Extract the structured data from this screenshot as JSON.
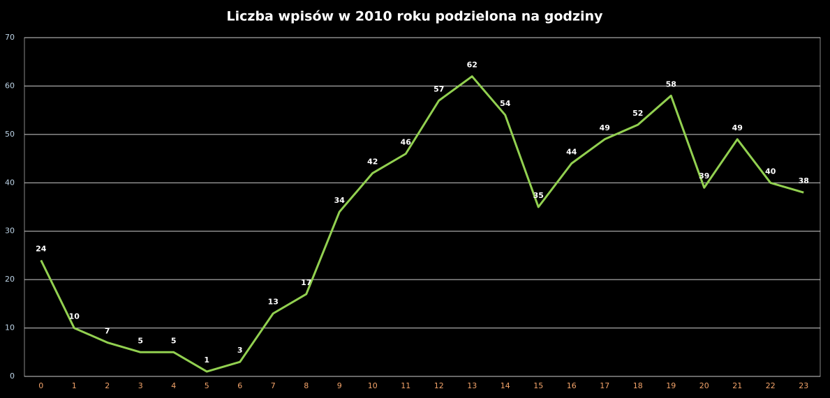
{
  "chart_data": {
    "type": "line",
    "title": "Liczba wpisów w 2010 roku podzielona na godziny",
    "categories": [
      "0",
      "1",
      "2",
      "3",
      "4",
      "5",
      "6",
      "7",
      "8",
      "9",
      "10",
      "11",
      "12",
      "13",
      "14",
      "15",
      "16",
      "17",
      "18",
      "19",
      "20",
      "21",
      "22",
      "23"
    ],
    "series": [
      {
        "name": null,
        "color": "#92d050",
        "values": [
          24,
          10,
          7,
          5,
          5,
          1,
          3,
          13,
          17,
          34,
          42,
          46,
          57,
          62,
          54,
          35,
          44,
          49,
          52,
          58,
          39,
          49,
          40,
          38
        ]
      }
    ],
    "ylim": [
      0,
      70
    ],
    "yticks": [
      0,
      10,
      20,
      30,
      40,
      50,
      60,
      70
    ],
    "grid": true
  }
}
